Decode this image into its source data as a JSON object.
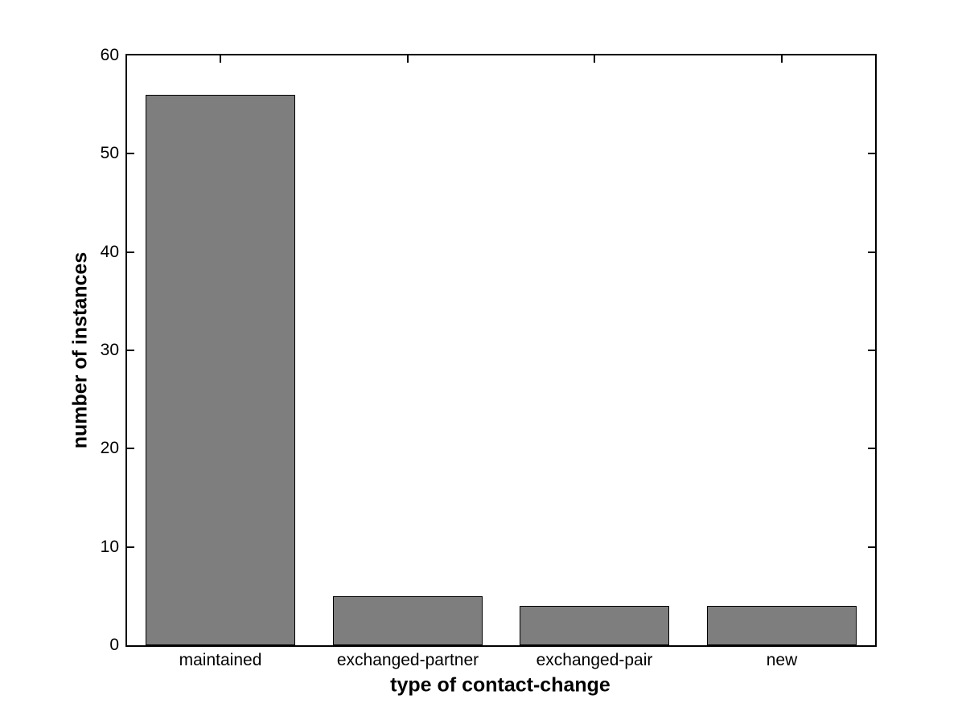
{
  "chart_data": {
    "type": "bar",
    "categories": [
      "maintained",
      "exchanged-partner",
      "exchanged-pair",
      "new"
    ],
    "values": [
      56,
      5,
      4,
      4
    ],
    "title": "",
    "xlabel": "type of contact-change",
    "ylabel": "number of instances",
    "ylim": [
      0,
      60
    ],
    "yticks": [
      0,
      10,
      20,
      30,
      40,
      50,
      60
    ],
    "bar_width_fraction": 0.8,
    "grid": false,
    "legend_position": "none",
    "colors": {
      "bar_fill": "#7E7E7E",
      "bar_edge": "#000000",
      "axis": "#000000",
      "background": "#FFFFFF",
      "text": "#000000"
    }
  }
}
